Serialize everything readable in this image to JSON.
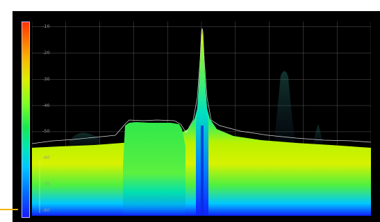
{
  "spectrum_display": {
    "y_ticks": [
      "-10",
      "-20",
      "-30",
      "-40",
      "-50",
      "-60",
      "-70",
      "-80"
    ],
    "y_range_db": [
      -82,
      -8
    ],
    "grid": true,
    "colormap": [
      "#ff3300",
      "#ff7a00",
      "#f6c000",
      "#d8f000",
      "#7cff20",
      "#18e850",
      "#00e8b0",
      "#00c8ff",
      "#0078ff",
      "#1a1aff"
    ],
    "background_color": "#000000",
    "trace_color": "#ffffff",
    "accent_color": "#f2b400"
  }
}
